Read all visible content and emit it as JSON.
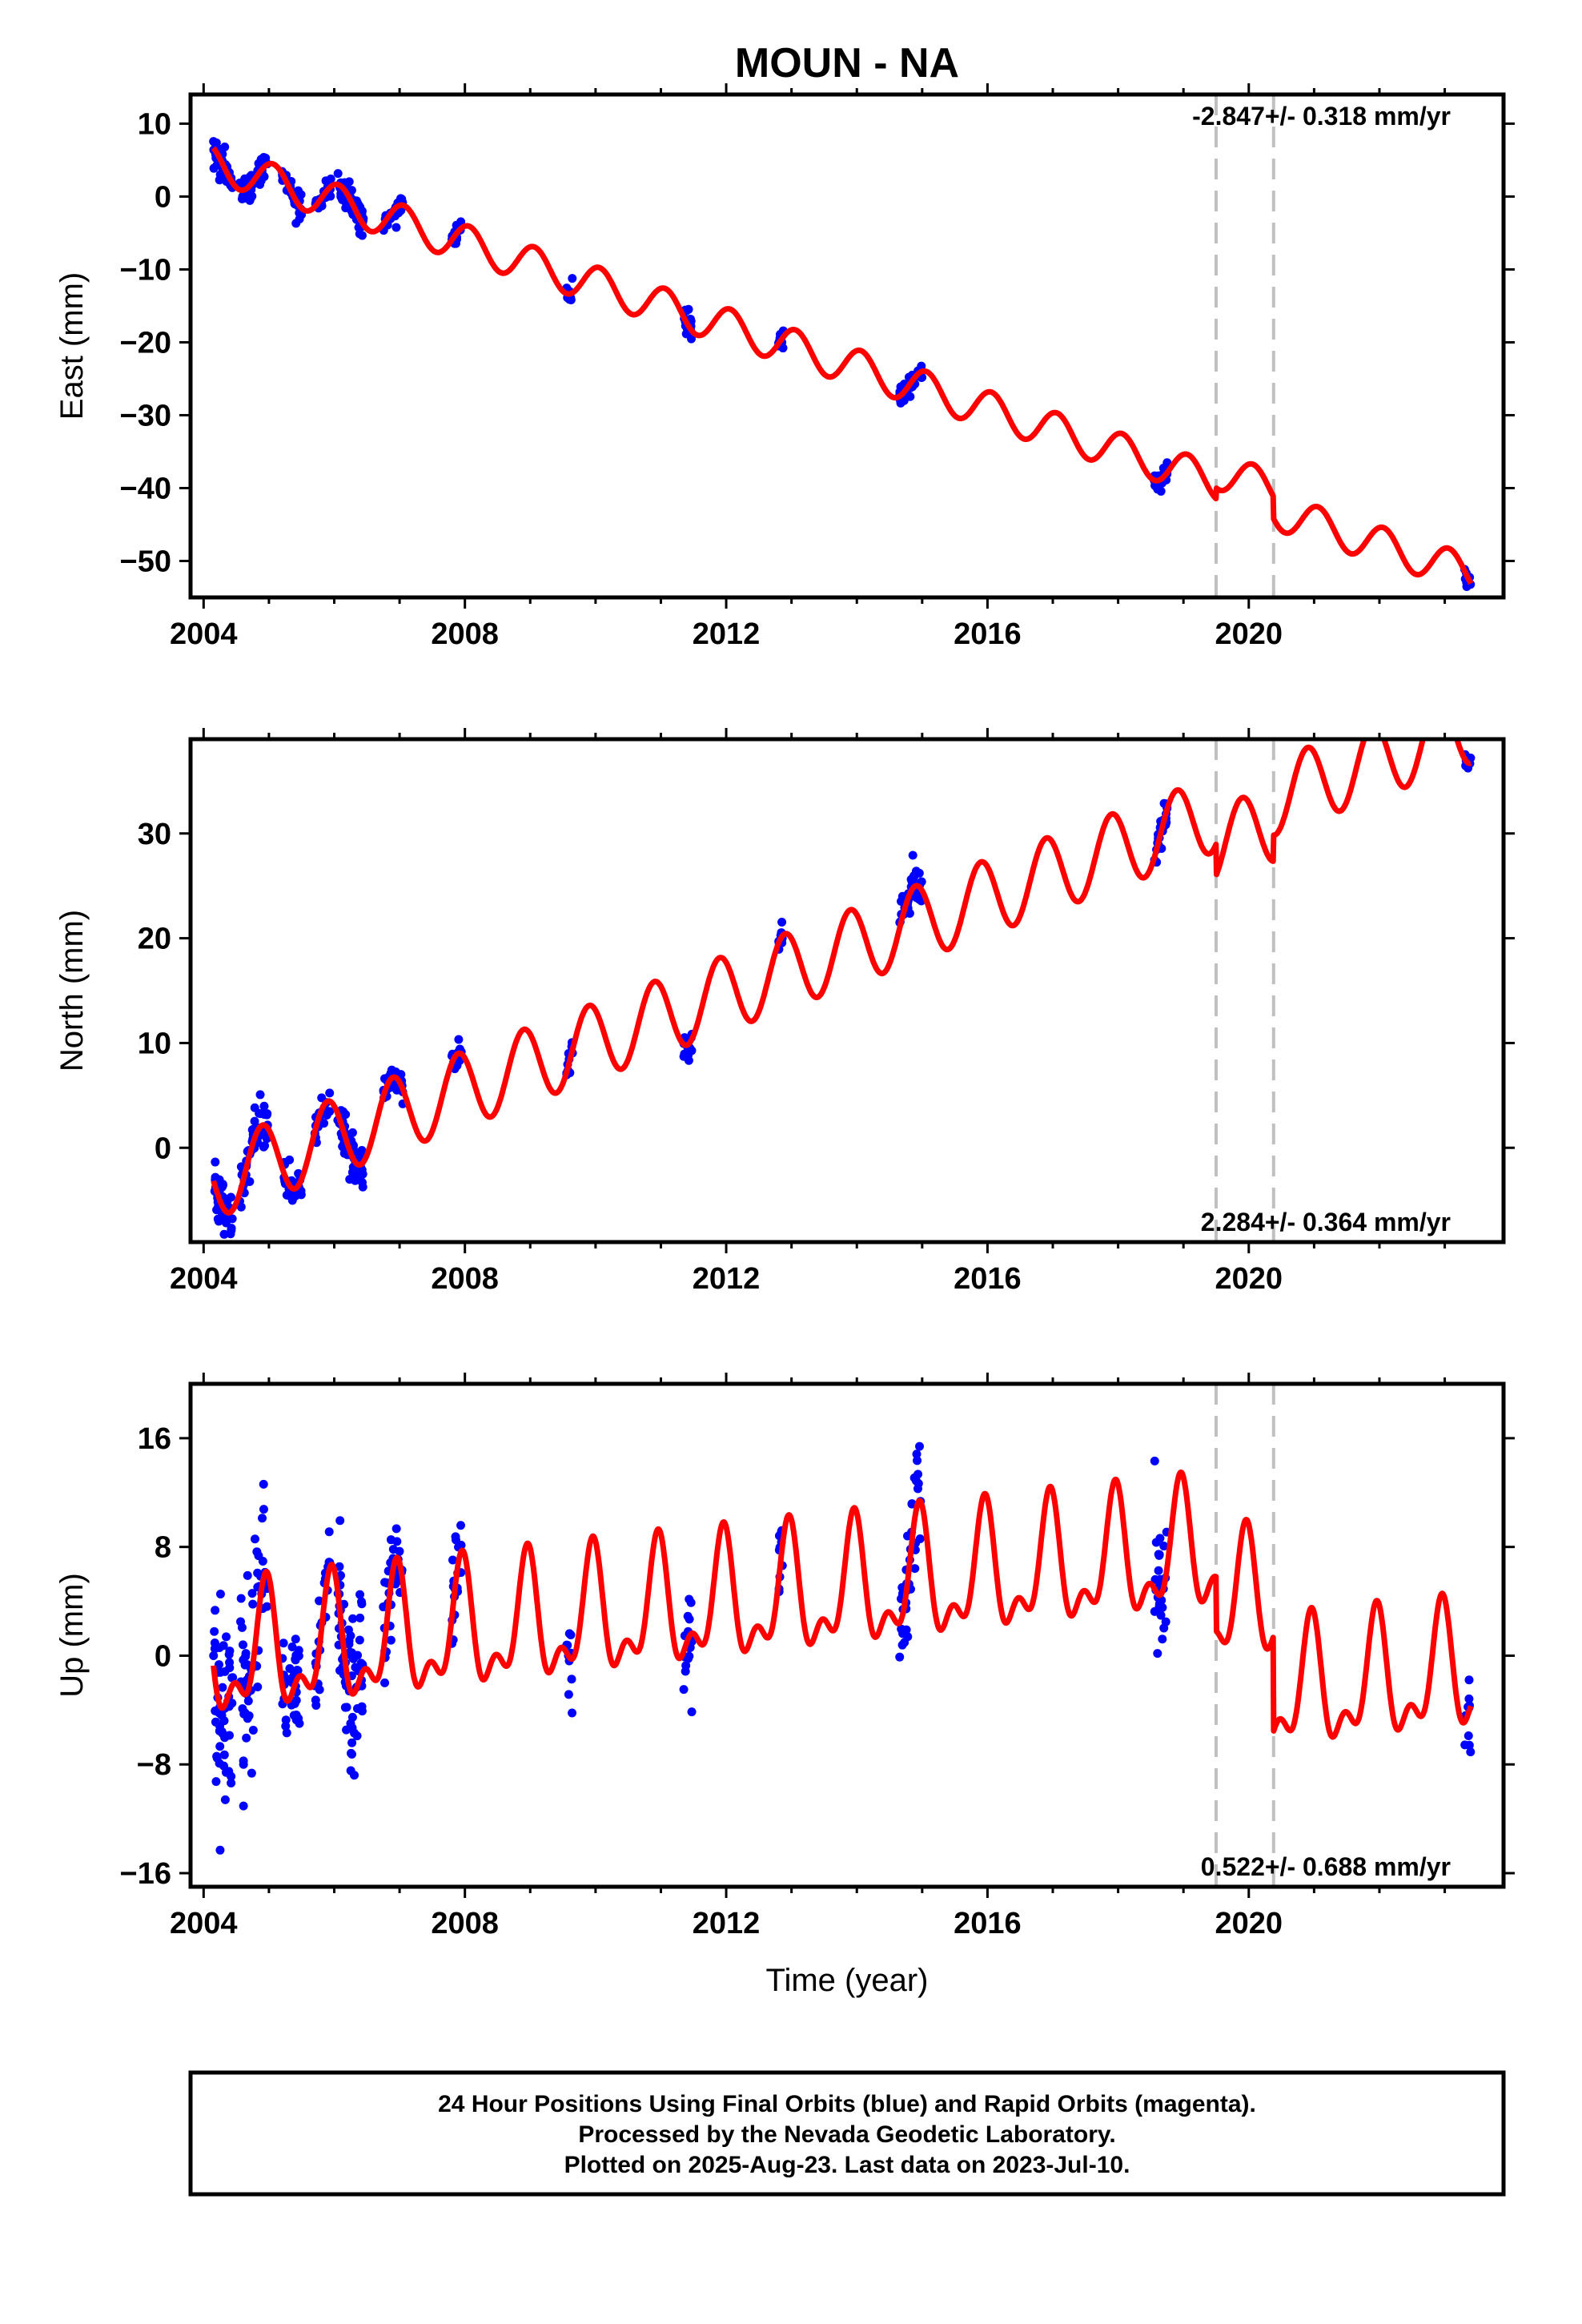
{
  "title": "MOUN - NA",
  "colors": {
    "data": "#0000ff",
    "model": "#ff0000",
    "offset": "#c0c0c0",
    "frame": "#000000"
  },
  "footer": {
    "line1": "24 Hour Positions Using Final Orbits (blue) and Rapid Orbits (magenta).",
    "line2": "Processed by the Nevada Geodetic Laboratory.",
    "line3": "Plotted on 2025-Aug-23. Last data on 2023-Jul-10."
  },
  "chart_data": [
    {
      "type": "scatter",
      "component": "east",
      "ylabel": "East (mm)",
      "xlabel": "",
      "xlim": [
        2003.8,
        2023.9
      ],
      "ylim": [
        -55,
        14
      ],
      "xticks": [
        2004,
        2008,
        2012,
        2016,
        2020
      ],
      "yticks": [
        10,
        0,
        -10,
        -20,
        -30,
        -40,
        -50
      ],
      "rate_label": "-2.847+/- 0.318 mm/yr",
      "rate_position": "top-right",
      "offset_lines": [
        2019.5,
        2020.38
      ],
      "model": {
        "rate": -2.847,
        "value_at_2004": 5.0,
        "annual_amp": 2.5,
        "annual_phase": 1.2,
        "semiannual_amp": 0.0,
        "semiannual_phase": 0.0,
        "steps": [
          {
            "t": 2019.5,
            "d": 1.5
          },
          {
            "t": 2020.38,
            "d": -3.0
          }
        ]
      },
      "observation_clusters": [
        {
          "start": 2004.15,
          "end": 2004.45,
          "n": 55,
          "spread": 1.8
        },
        {
          "start": 2004.55,
          "end": 2004.98,
          "n": 55,
          "spread": 1.6
        },
        {
          "start": 2005.2,
          "end": 2005.5,
          "n": 35,
          "spread": 1.4
        },
        {
          "start": 2005.7,
          "end": 2005.95,
          "n": 22,
          "spread": 1.2
        },
        {
          "start": 2006.05,
          "end": 2006.45,
          "n": 70,
          "spread": 2.0
        },
        {
          "start": 2006.75,
          "end": 2007.05,
          "n": 35,
          "spread": 1.2
        },
        {
          "start": 2007.8,
          "end": 2007.95,
          "n": 20,
          "spread": 1.0
        },
        {
          "start": 2009.55,
          "end": 2009.65,
          "n": 10,
          "spread": 1.5
        },
        {
          "start": 2011.35,
          "end": 2011.48,
          "n": 18,
          "spread": 1.5
        },
        {
          "start": 2012.8,
          "end": 2012.88,
          "n": 10,
          "spread": 1.5
        },
        {
          "start": 2014.65,
          "end": 2015.0,
          "n": 40,
          "spread": 1.2
        },
        {
          "start": 2018.55,
          "end": 2018.75,
          "n": 30,
          "spread": 1.2
        },
        {
          "start": 2023.3,
          "end": 2023.4,
          "n": 10,
          "spread": 1.2
        }
      ]
    },
    {
      "type": "scatter",
      "component": "north",
      "ylabel": "North (mm)",
      "xlabel": "",
      "xlim": [
        2003.8,
        2023.9
      ],
      "ylim": [
        -9,
        39
      ],
      "xticks": [
        2004,
        2008,
        2012,
        2016,
        2020
      ],
      "yticks": [
        30,
        20,
        10,
        0
      ],
      "rate_label": "2.284+/- 0.364 mm/yr",
      "rate_position": "bottom-right",
      "offset_lines": [
        2019.5,
        2020.38
      ],
      "model": {
        "rate": 2.284,
        "value_at_2004": -3.5,
        "annual_amp": 3.6,
        "annual_phase": 2.2,
        "semiannual_amp": 0.0,
        "semiannual_phase": 0.0,
        "steps": [
          {
            "t": 2019.5,
            "d": -3.0
          },
          {
            "t": 2020.38,
            "d": 2.5
          }
        ]
      },
      "observation_clusters": [
        {
          "start": 2004.15,
          "end": 2004.45,
          "n": 55,
          "spread": 2.2
        },
        {
          "start": 2004.55,
          "end": 2004.98,
          "n": 55,
          "spread": 2.2
        },
        {
          "start": 2005.2,
          "end": 2005.5,
          "n": 35,
          "spread": 1.6
        },
        {
          "start": 2005.7,
          "end": 2005.95,
          "n": 22,
          "spread": 1.5
        },
        {
          "start": 2006.05,
          "end": 2006.45,
          "n": 70,
          "spread": 2.0
        },
        {
          "start": 2006.75,
          "end": 2007.05,
          "n": 35,
          "spread": 1.2
        },
        {
          "start": 2007.8,
          "end": 2007.95,
          "n": 20,
          "spread": 1.2
        },
        {
          "start": 2009.55,
          "end": 2009.65,
          "n": 10,
          "spread": 1.2
        },
        {
          "start": 2011.35,
          "end": 2011.48,
          "n": 18,
          "spread": 1.2
        },
        {
          "start": 2012.8,
          "end": 2012.88,
          "n": 10,
          "spread": 1.2
        },
        {
          "start": 2014.65,
          "end": 2015.0,
          "n": 40,
          "spread": 1.8
        },
        {
          "start": 2018.55,
          "end": 2018.75,
          "n": 30,
          "spread": 1.4
        },
        {
          "start": 2023.3,
          "end": 2023.4,
          "n": 10,
          "spread": 0.8
        }
      ]
    },
    {
      "type": "scatter",
      "component": "up",
      "ylabel": "Up (mm)",
      "xlabel": "Time (year)",
      "xlim": [
        2003.8,
        2023.9
      ],
      "ylim": [
        -17,
        20
      ],
      "xticks": [
        2004,
        2008,
        2012,
        2016,
        2020
      ],
      "yticks": [
        16,
        8,
        0,
        -8,
        -16
      ],
      "rate_label": "0.522+/- 0.688 mm/yr",
      "rate_position": "bottom-right",
      "offset_lines": [
        2019.5,
        2020.38
      ],
      "model": {
        "rate": 0.522,
        "value_at_2004": -0.5,
        "annual_amp": 4.0,
        "annual_phase": 1.9,
        "semiannual_amp": 2.2,
        "semiannual_phase": 2.0,
        "steps": [
          {
            "t": 2019.5,
            "d": -4.0
          },
          {
            "t": 2020.38,
            "d": -7.0
          }
        ]
      },
      "observation_clusters": [
        {
          "start": 2004.15,
          "end": 2004.45,
          "n": 55,
          "spread": 5.0
        },
        {
          "start": 2004.55,
          "end": 2004.98,
          "n": 55,
          "spread": 5.0
        },
        {
          "start": 2005.2,
          "end": 2005.5,
          "n": 35,
          "spread": 4.0
        },
        {
          "start": 2005.7,
          "end": 2005.95,
          "n": 22,
          "spread": 3.5
        },
        {
          "start": 2006.05,
          "end": 2006.45,
          "n": 70,
          "spread": 5.0
        },
        {
          "start": 2006.75,
          "end": 2007.05,
          "n": 35,
          "spread": 3.5
        },
        {
          "start": 2007.8,
          "end": 2007.95,
          "n": 20,
          "spread": 3.5
        },
        {
          "start": 2009.55,
          "end": 2009.65,
          "n": 10,
          "spread": 4.0
        },
        {
          "start": 2011.35,
          "end": 2011.48,
          "n": 18,
          "spread": 4.0
        },
        {
          "start": 2012.8,
          "end": 2012.88,
          "n": 10,
          "spread": 3.0
        },
        {
          "start": 2014.65,
          "end": 2015.0,
          "n": 40,
          "spread": 4.5
        },
        {
          "start": 2018.55,
          "end": 2018.75,
          "n": 30,
          "spread": 5.0
        },
        {
          "start": 2023.3,
          "end": 2023.4,
          "n": 10,
          "spread": 4.0
        }
      ]
    }
  ]
}
